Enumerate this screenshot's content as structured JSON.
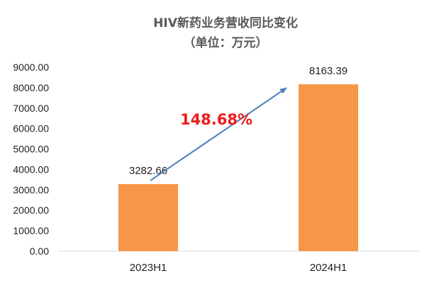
{
  "chart_data": {
    "type": "bar",
    "title": "HIV新药业务营收同比变化",
    "subtitle": "（单位：万元）",
    "categories": [
      "2023H1",
      "2024H1"
    ],
    "values": [
      3282.66,
      8163.39
    ],
    "data_labels": [
      "3282.66",
      "8163.39"
    ],
    "ylim": [
      0,
      9000
    ],
    "y_ticks": [
      "0.00",
      "1000.00",
      "2000.00",
      "3000.00",
      "4000.00",
      "5000.00",
      "6000.00",
      "7000.00",
      "8000.00",
      "9000.00"
    ],
    "grid": false,
    "legend": "none",
    "bar_color": "#f79646",
    "annotation": {
      "text": "148.68%",
      "color": "#ee1c1c",
      "arrow_color": "#4a7ebb"
    }
  }
}
